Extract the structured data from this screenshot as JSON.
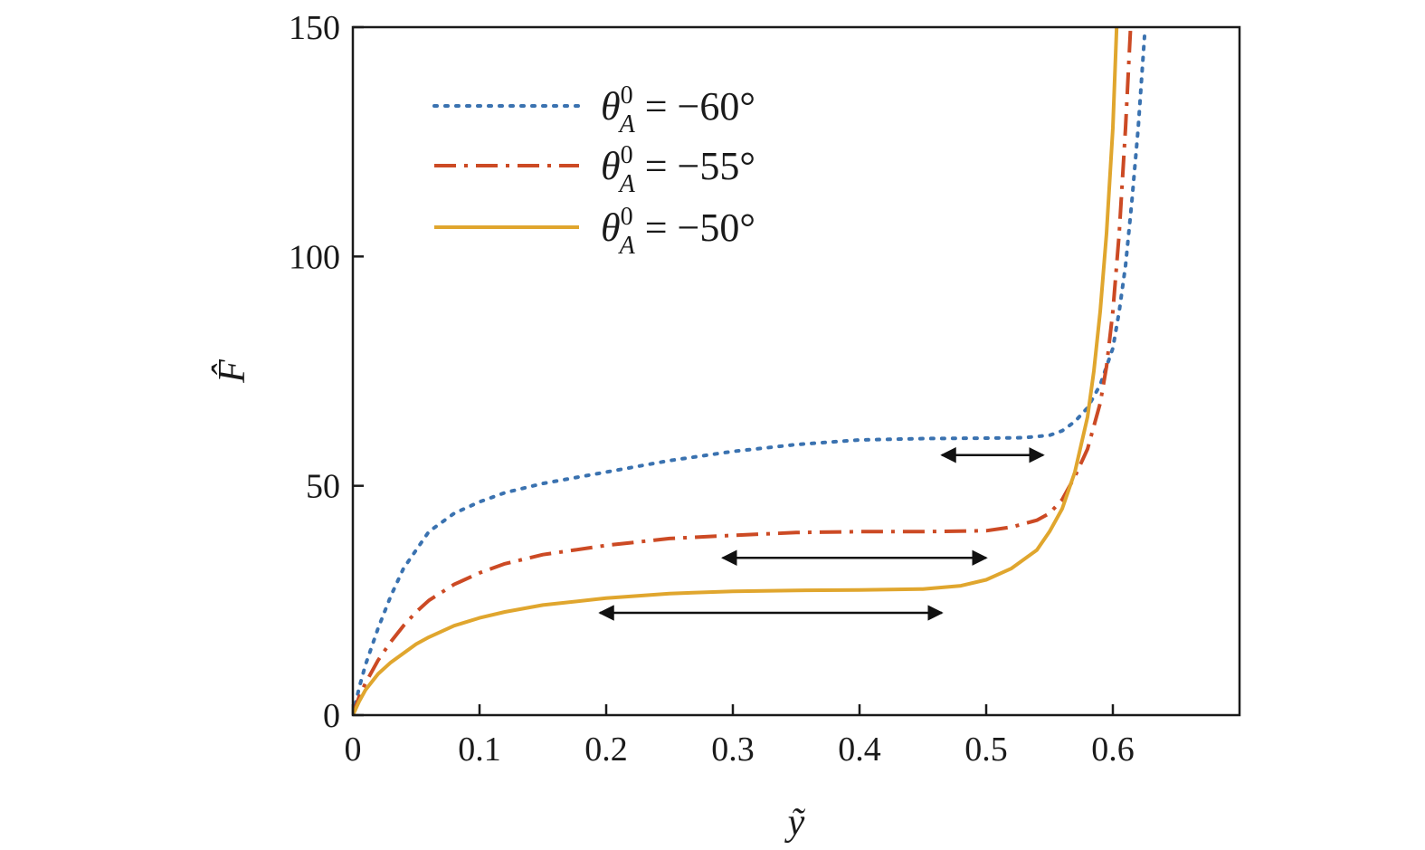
{
  "chart_data": {
    "type": "line",
    "xlabel": "ỹ",
    "ylabel": "F̂",
    "xlim": [
      0,
      0.7
    ],
    "ylim": [
      0,
      150
    ],
    "xticks": [
      "0",
      "0.1",
      "0.2",
      "0.3",
      "0.4",
      "0.5",
      "0.6"
    ],
    "xtick_values": [
      0,
      0.1,
      0.2,
      0.3,
      0.4,
      0.5,
      0.6
    ],
    "yticks": [
      "0",
      "50",
      "100",
      "150"
    ],
    "ytick_values": [
      0,
      50,
      100,
      150
    ],
    "grid": false,
    "legend_position": "top-left",
    "series": [
      {
        "name": "θ_A^0 = −60°",
        "label_symbol": "θ",
        "label_sup": "0",
        "label_sub": "A",
        "label_value": " = −60°",
        "color": "#3a72b0",
        "style": "dotted",
        "x": [
          0,
          0.005,
          0.01,
          0.02,
          0.03,
          0.04,
          0.05,
          0.06,
          0.08,
          0.1,
          0.12,
          0.15,
          0.2,
          0.25,
          0.3,
          0.35,
          0.4,
          0.45,
          0.5,
          0.53,
          0.55,
          0.56,
          0.57,
          0.58,
          0.59,
          0.6,
          0.605,
          0.61,
          0.615,
          0.62,
          0.625
        ],
        "y": [
          0,
          6,
          11,
          19,
          26,
          32,
          36,
          40,
          44,
          46.5,
          48.5,
          50.5,
          53,
          55.5,
          57.5,
          59,
          60,
          60.3,
          60.4,
          60.5,
          61,
          62,
          64,
          67,
          72,
          80,
          88,
          98,
          112,
          128,
          148
        ]
      },
      {
        "name": "θ_A^0 = −55°",
        "label_symbol": "θ",
        "label_sup": "0",
        "label_sub": "A",
        "label_value": " = −55°",
        "color": "#cc4a24",
        "style": "dashdot",
        "x": [
          0,
          0.005,
          0.01,
          0.02,
          0.03,
          0.04,
          0.05,
          0.06,
          0.08,
          0.1,
          0.12,
          0.15,
          0.2,
          0.25,
          0.3,
          0.35,
          0.4,
          0.45,
          0.5,
          0.52,
          0.54,
          0.55,
          0.56,
          0.57,
          0.58,
          0.59,
          0.595,
          0.6,
          0.605,
          0.61,
          0.614
        ],
        "y": [
          0,
          4,
          7,
          12,
          16,
          19.5,
          22.5,
          25,
          28.5,
          31,
          33,
          35,
          37,
          38.5,
          39.2,
          39.8,
          40,
          40,
          40.2,
          41,
          42.5,
          44,
          47,
          52,
          58,
          68,
          76,
          88,
          105,
          128,
          150
        ]
      },
      {
        "name": "θ_A^0 = −50°",
        "label_symbol": "θ",
        "label_sup": "0",
        "label_sub": "A",
        "label_value": " = −50°",
        "color": "#e0a62e",
        "style": "solid",
        "x": [
          0,
          0.005,
          0.01,
          0.02,
          0.03,
          0.04,
          0.05,
          0.06,
          0.08,
          0.1,
          0.12,
          0.15,
          0.2,
          0.25,
          0.3,
          0.35,
          0.4,
          0.45,
          0.48,
          0.5,
          0.52,
          0.54,
          0.55,
          0.56,
          0.57,
          0.58,
          0.585,
          0.59,
          0.595,
          0.6,
          0.603
        ],
        "y": [
          0,
          3,
          5.5,
          9,
          11.5,
          13.5,
          15.5,
          17,
          19.5,
          21.2,
          22.5,
          24,
          25.5,
          26.5,
          27,
          27.2,
          27.3,
          27.5,
          28.2,
          29.5,
          32,
          36,
          40,
          45,
          53,
          65,
          75,
          88,
          105,
          128,
          150
        ]
      }
    ],
    "annotations": [
      {
        "type": "double-arrow",
        "x1": 0.465,
        "x2": 0.545,
        "y": 56.7
      },
      {
        "type": "double-arrow",
        "x1": 0.292,
        "x2": 0.5,
        "y": 34.3
      },
      {
        "type": "double-arrow",
        "x1": 0.195,
        "x2": 0.465,
        "y": 22.3
      }
    ]
  }
}
